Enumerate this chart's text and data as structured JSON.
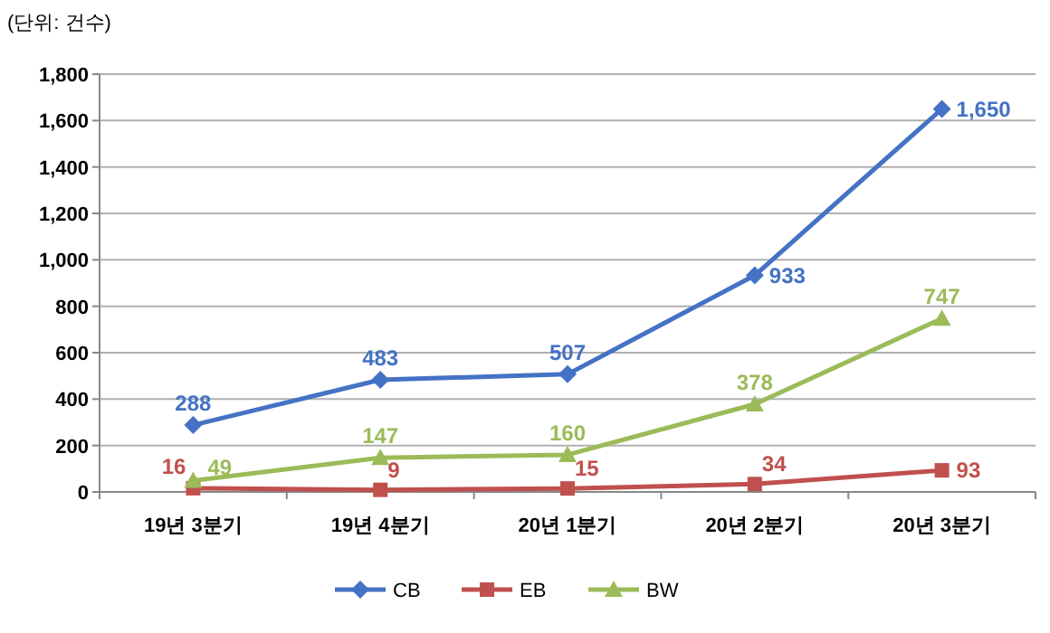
{
  "chart_data": {
    "type": "line",
    "categories": [
      "19년 3분기",
      "19년 4분기",
      "20년 1분기",
      "20년 2분기",
      "20년 3분기"
    ],
    "series": [
      {
        "name": "CB",
        "color": "#4472c4",
        "marker": "diamond",
        "values": [
          288,
          483,
          507,
          933,
          1650
        ],
        "value_labels": [
          "288",
          "483",
          "507",
          "933",
          "1,650"
        ]
      },
      {
        "name": "EB",
        "color": "#c0504d",
        "marker": "square",
        "values": [
          16,
          9,
          15,
          34,
          93
        ],
        "value_labels": [
          "16",
          "9",
          "15",
          "34",
          "93"
        ]
      },
      {
        "name": "BW",
        "color": "#9bbb59",
        "marker": "triangle",
        "values": [
          49,
          147,
          160,
          378,
          747
        ],
        "value_labels": [
          "49",
          "147",
          "160",
          "378",
          "747"
        ]
      }
    ],
    "ylim": [
      0,
      1800
    ],
    "yticks": [
      {
        "value": 0,
        "label": "0"
      },
      {
        "value": 200,
        "label": "200"
      },
      {
        "value": 400,
        "label": "400"
      },
      {
        "value": 600,
        "label": "600"
      },
      {
        "value": 800,
        "label": "800"
      },
      {
        "value": 1000,
        "label": "1,000"
      },
      {
        "value": 1200,
        "label": "1,200"
      },
      {
        "value": 1400,
        "label": "1,400"
      },
      {
        "value": 1600,
        "label": "1,600"
      },
      {
        "value": 1800,
        "label": "1,800"
      }
    ],
    "grid": "y",
    "legend": "bottom",
    "line_style": "solid",
    "annotations": [
      "(단위: 건수)"
    ]
  }
}
